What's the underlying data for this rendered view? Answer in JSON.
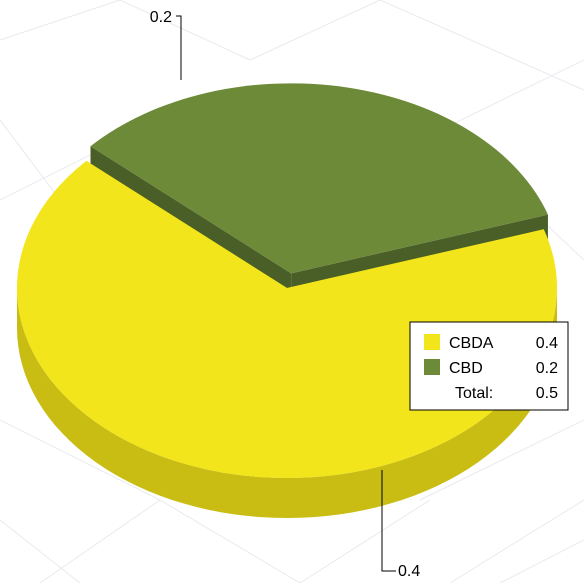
{
  "chart_data": {
    "type": "pie",
    "title": "",
    "categories": [
      "CBDA",
      "CBD"
    ],
    "values": [
      0.4,
      0.2
    ],
    "value_labels": [
      "0.4",
      "0.2"
    ],
    "colors": {
      "CBDA": {
        "top": "#f2e51b",
        "side": "#c9bd14"
      },
      "CBD": {
        "top": "#6d8a39",
        "side": "#4a5f27"
      },
      "background_lines": "#e9eaee"
    },
    "exploded": [
      "CBD"
    ],
    "three_d": true,
    "legend": {
      "position": "right",
      "items": [
        {
          "label": "CBDA",
          "value": "0.4"
        },
        {
          "label": "CBD",
          "value": "0.2"
        }
      ],
      "total_label": "Total:",
      "total_value": "0.5"
    }
  }
}
